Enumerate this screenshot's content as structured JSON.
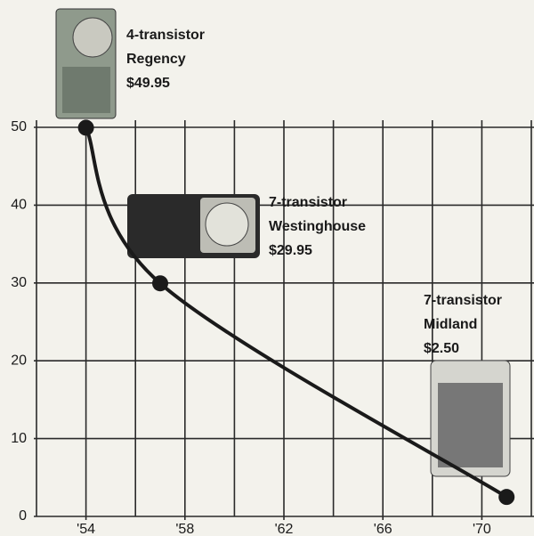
{
  "chart_data": {
    "type": "line",
    "x": [
      1954,
      1957,
      1971
    ],
    "series": [
      {
        "color": "#1a1a1a",
        "values": [
          49.95,
          29.95,
          2.5
        ],
        "value_labels": [
          "$49.95",
          "$29.95",
          "$2.50"
        ],
        "point_labels": [
          [
            "4-transistor",
            "Regency"
          ],
          [
            "7-transistor",
            "Westinghouse"
          ],
          [
            "7-transistor",
            "Midland"
          ]
        ]
      }
    ],
    "xlim": [
      1952,
      1972
    ],
    "ylim": [
      0,
      50
    ],
    "xticks": [
      {
        "value": 1954,
        "label": "'54"
      },
      {
        "value": 1958,
        "label": "'58"
      },
      {
        "value": 1962,
        "label": "'62"
      },
      {
        "value": 1966,
        "label": "'66"
      },
      {
        "value": 1970,
        "label": "'70"
      }
    ],
    "xgrid": [
      1952,
      1954,
      1956,
      1958,
      1960,
      1962,
      1964,
      1966,
      1968,
      1970,
      1972
    ],
    "yticks": [
      0,
      10,
      20,
      30,
      40,
      50
    ],
    "grid": true
  }
}
